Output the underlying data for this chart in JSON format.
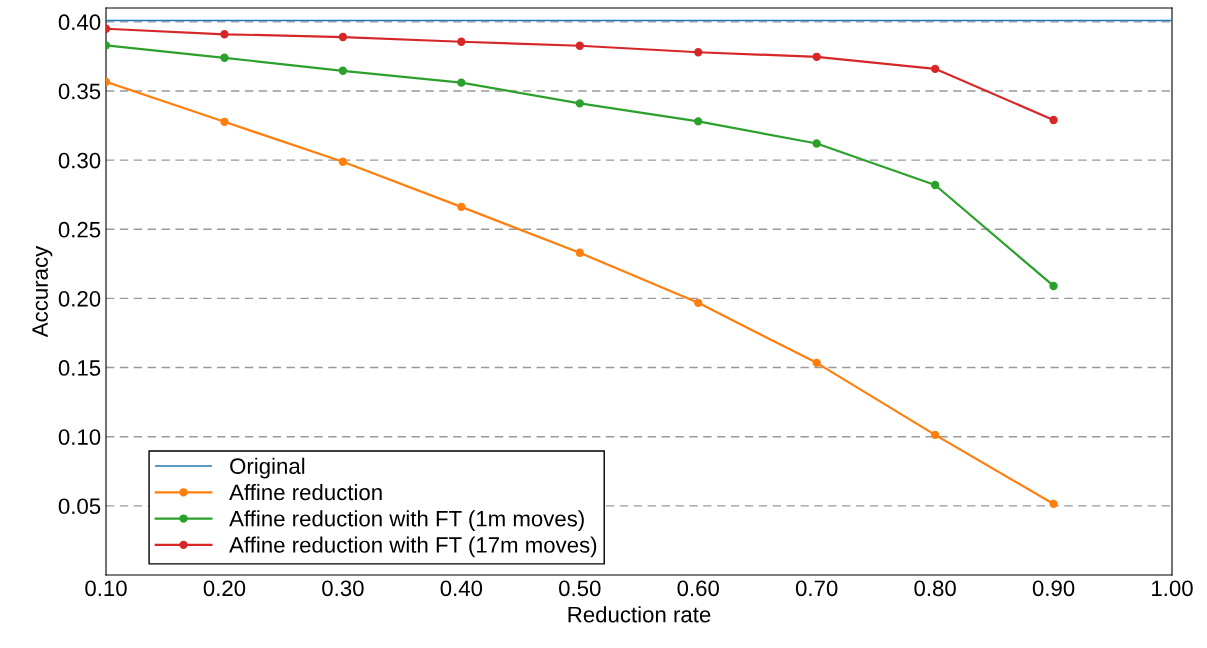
{
  "chart_data": {
    "type": "line",
    "xlabel": "Reduction rate",
    "ylabel": "Accuracy",
    "x": [
      0.1,
      0.2,
      0.3,
      0.4,
      0.5,
      0.6,
      0.7,
      0.8,
      0.9
    ],
    "series": [
      {
        "name": "Original",
        "color": "#1f77b4",
        "x": [
          0.1,
          1.0
        ],
        "values": [
          0.401,
          0.401
        ],
        "marker": "none"
      },
      {
        "name": "Affine reduction",
        "color": "#ff7f0e",
        "values": [
          0.3566,
          0.3277,
          0.2988,
          0.2662,
          0.233,
          0.1968,
          0.1534,
          0.1013,
          0.0514
        ],
        "marker": "circle"
      },
      {
        "name": "Affine reduction with FT (1m moves)",
        "color": "#2ca02c",
        "values": [
          0.383,
          0.374,
          0.3646,
          0.356,
          0.341,
          0.328,
          0.312,
          0.282,
          0.209
        ],
        "marker": "circle"
      },
      {
        "name": "Affine reduction with FT (17m moves)",
        "color": "#d62728",
        "values": [
          0.395,
          0.391,
          0.389,
          0.3856,
          0.3827,
          0.378,
          0.3747,
          0.366,
          0.329
        ],
        "marker": "circle"
      }
    ],
    "xlim": [
      0.1,
      1.0
    ],
    "ylim": [
      0,
      0.41
    ],
    "xticks": [
      {
        "value": 0.1,
        "label": "0.10"
      },
      {
        "value": 0.2,
        "label": "0.20"
      },
      {
        "value": 0.3,
        "label": "0.30"
      },
      {
        "value": 0.4,
        "label": "0.40"
      },
      {
        "value": 0.5,
        "label": "0.50"
      },
      {
        "value": 0.6,
        "label": "0.60"
      },
      {
        "value": 0.7,
        "label": "0.70"
      },
      {
        "value": 0.8,
        "label": "0.80"
      },
      {
        "value": 0.9,
        "label": "0.90"
      },
      {
        "value": 1.0,
        "label": "1.00"
      }
    ],
    "yticks": [
      {
        "value": 0.05,
        "label": "0.05"
      },
      {
        "value": 0.1,
        "label": "0.10"
      },
      {
        "value": 0.15,
        "label": "0.15"
      },
      {
        "value": 0.2,
        "label": "0.20"
      },
      {
        "value": 0.25,
        "label": "0.25"
      },
      {
        "value": 0.3,
        "label": "0.30"
      },
      {
        "value": 0.35,
        "label": "0.35"
      },
      {
        "value": 0.4,
        "label": "0.40"
      }
    ],
    "grid": "y",
    "legend": "bottom left",
    "line_style": "solid"
  }
}
